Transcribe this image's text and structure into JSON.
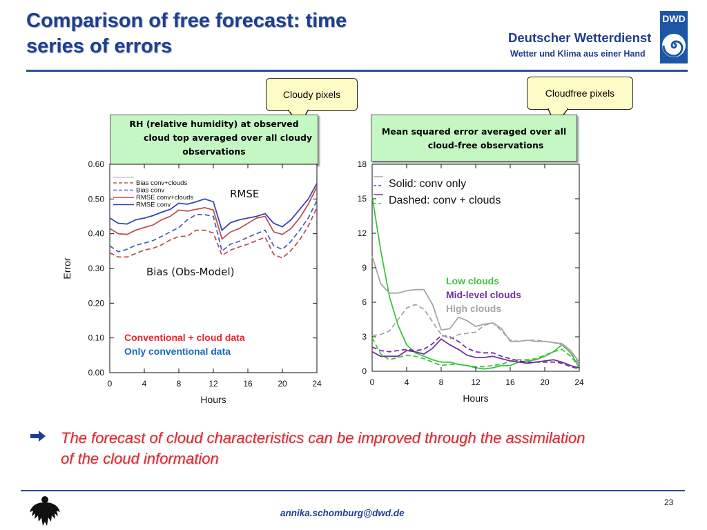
{
  "slide": {
    "title_line1": "Comparison  of free forecast: time",
    "title_line2": "series of errors"
  },
  "logo": {
    "box_label": "DWD",
    "name": "Deutscher Wetterdienst",
    "tagline": "Wetter und Klima aus einer Hand",
    "icon": "dwd-spiral-icon"
  },
  "callouts": {
    "cloudy": "Cloudy pixels",
    "cloudfree": "Cloudfree pixels"
  },
  "left_box": {
    "line1": "RH (relative humidity) at observed",
    "line2": "cloud top averaged over all cloudy",
    "line3": "observations"
  },
  "right_box": {
    "line1": "Mean squared error averaged over all",
    "line2": "cloud-free observations"
  },
  "annotations": {
    "rmse": "RMSE",
    "bias": "Bias (Obs-Model)",
    "conv_cloud": "Conventional + cloud data",
    "only_conv": "Only conventional data",
    "solid": "Solid: conv only",
    "dashed": "Dashed: conv + clouds",
    "low": "Low clouds",
    "mid": "Mid-level clouds",
    "high": "High clouds"
  },
  "colors": {
    "title": "#1d3f91",
    "red": "#e8242c",
    "conv_blue": "#1b6ab5",
    "low_green": "#3cc33c",
    "mid_purple": "#7030a0",
    "high_gray": "#a6a6a6"
  },
  "conclusion": {
    "line1": "The forecast of cloud characteristics can be improved through the assimilation",
    "line2": "of the cloud information",
    "icon": "right-arrow-icon"
  },
  "footer": {
    "page": "23",
    "email": "annika.schomburg@dwd.de",
    "logo": "federal-eagle-icon"
  },
  "chart_data": [
    {
      "type": "line",
      "xlabel": "Hours",
      "ylabel": "Error",
      "xlim": [
        0,
        24
      ],
      "ylim": [
        0,
        0.6
      ],
      "x_ticks": [
        "0",
        "4",
        "8",
        "12",
        "16",
        "20",
        "24"
      ],
      "y_ticks": [
        "0.00",
        "0.10",
        "0.20",
        "0.30",
        "0.40",
        "0.50",
        "0.60"
      ],
      "legend": [
        "Bias conv+clouds",
        "Bias conv",
        "RMSE conv+clouds",
        "RMSE conv"
      ],
      "legend_placement": "top-left",
      "x": [
        0,
        1,
        2,
        3,
        4,
        5,
        6,
        7,
        8,
        9,
        10,
        11,
        12,
        13,
        14,
        15,
        16,
        17,
        18,
        19,
        20,
        21,
        22,
        23,
        24
      ],
      "series": [
        {
          "name": "Bias conv+clouds",
          "color": "#c0504d",
          "dash": "dashed",
          "values": [
            0.345,
            0.333,
            0.333,
            0.343,
            0.353,
            0.358,
            0.368,
            0.382,
            0.392,
            0.393,
            0.41,
            0.41,
            0.402,
            0.338,
            0.353,
            0.362,
            0.37,
            0.38,
            0.39,
            0.34,
            0.33,
            0.352,
            0.382,
            0.422,
            0.475
          ]
        },
        {
          "name": "Bias conv",
          "color": "#4a5fc4",
          "dash": "dashed",
          "values": [
            0.365,
            0.348,
            0.355,
            0.367,
            0.373,
            0.38,
            0.392,
            0.405,
            0.418,
            0.44,
            0.455,
            0.455,
            0.45,
            0.35,
            0.37,
            0.378,
            0.39,
            0.4,
            0.41,
            0.365,
            0.355,
            0.378,
            0.41,
            0.445,
            0.495
          ]
        },
        {
          "name": "RMSE conv+clouds",
          "color": "#c0504d",
          "dash": "solid",
          "values": [
            0.415,
            0.4,
            0.398,
            0.41,
            0.418,
            0.425,
            0.44,
            0.45,
            0.468,
            0.465,
            0.47,
            0.475,
            0.468,
            0.385,
            0.405,
            0.415,
            0.43,
            0.445,
            0.45,
            0.405,
            0.398,
            0.415,
            0.445,
            0.485,
            0.535
          ]
        },
        {
          "name": "RMSE conv",
          "color": "#3046b8",
          "dash": "solid",
          "values": [
            0.445,
            0.43,
            0.428,
            0.44,
            0.445,
            0.452,
            0.462,
            0.47,
            0.488,
            0.485,
            0.492,
            0.5,
            0.492,
            0.41,
            0.432,
            0.44,
            0.445,
            0.45,
            0.458,
            0.43,
            0.42,
            0.44,
            0.47,
            0.5,
            0.545
          ]
        }
      ]
    },
    {
      "type": "line",
      "xlabel": "Hours",
      "ylabel": "",
      "xlim": [
        0,
        24
      ],
      "ylim": [
        0,
        18
      ],
      "x_ticks": [
        "0",
        "4",
        "8",
        "12",
        "16",
        "20",
        "24"
      ],
      "y_ticks": [
        "0",
        "3",
        "6",
        "9",
        "12",
        "15",
        "18"
      ],
      "legend_placement": "top-left",
      "x": [
        0,
        1,
        2,
        3,
        4,
        5,
        6,
        7,
        8,
        9,
        10,
        11,
        12,
        13,
        14,
        15,
        16,
        17,
        18,
        19,
        20,
        21,
        22,
        23,
        24
      ],
      "series": [
        {
          "name": "Low clouds",
          "color": "#3cc33c",
          "dash": "solid",
          "values": [
            15.2,
            10.5,
            6.5,
            4.0,
            2.3,
            1.6,
            1.3,
            1.0,
            0.8,
            0.8,
            0.6,
            0.5,
            0.3,
            0.2,
            0.3,
            0.5,
            0.5,
            0.8,
            0.9,
            1.0,
            1.3,
            1.7,
            2.3,
            1.6,
            0.3
          ]
        },
        {
          "name": "Low clouds",
          "color": "#3cc33c",
          "dash": "dashed",
          "values": [
            2.9,
            1.5,
            1.0,
            1.2,
            1.4,
            1.3,
            1.1,
            0.8,
            0.5,
            0.6,
            0.6,
            0.5,
            0.4,
            0.4,
            0.5,
            0.6,
            0.9,
            1.0,
            1.0,
            1.1,
            1.4,
            1.7,
            1.9,
            1.3,
            0.4
          ]
        },
        {
          "name": "Mid-level clouds",
          "color": "#7030a0",
          "dash": "solid",
          "values": [
            1.7,
            1.3,
            1.3,
            1.3,
            1.8,
            1.7,
            1.5,
            2.0,
            2.8,
            2.3,
            1.9,
            1.4,
            1.2,
            1.2,
            1.3,
            1.1,
            0.9,
            0.8,
            0.7,
            0.8,
            0.9,
            1.0,
            0.8,
            0.5,
            0.3
          ]
        },
        {
          "name": "Mid-level clouds",
          "color": "#7030a0",
          "dash": "dashed",
          "values": [
            2.1,
            1.8,
            1.7,
            1.8,
            1.9,
            1.8,
            1.9,
            2.4,
            3.1,
            3.0,
            2.6,
            2.0,
            1.7,
            1.6,
            1.6,
            1.3,
            1.1,
            0.9,
            0.8,
            0.8,
            0.8,
            0.8,
            0.7,
            0.4,
            0.2
          ]
        },
        {
          "name": "High clouds",
          "color": "#a6a6a6",
          "dash": "solid",
          "values": [
            10.0,
            7.6,
            6.8,
            6.8,
            7.0,
            7.1,
            7.1,
            5.8,
            3.6,
            3.7,
            4.7,
            4.4,
            3.9,
            4.1,
            4.2,
            3.7,
            2.6,
            2.6,
            2.7,
            2.6,
            2.6,
            2.5,
            2.4,
            1.8,
            0.8
          ]
        },
        {
          "name": "High clouds",
          "color": "#a6a6a6",
          "dash": "dashed",
          "values": [
            3.1,
            3.2,
            3.5,
            4.5,
            5.5,
            5.8,
            5.4,
            4.3,
            3.2,
            2.8,
            3.2,
            3.3,
            3.4,
            4.0,
            4.2,
            3.5,
            2.7,
            2.6,
            2.7,
            2.7,
            2.6,
            2.5,
            2.3,
            1.7,
            0.6
          ]
        }
      ]
    }
  ]
}
